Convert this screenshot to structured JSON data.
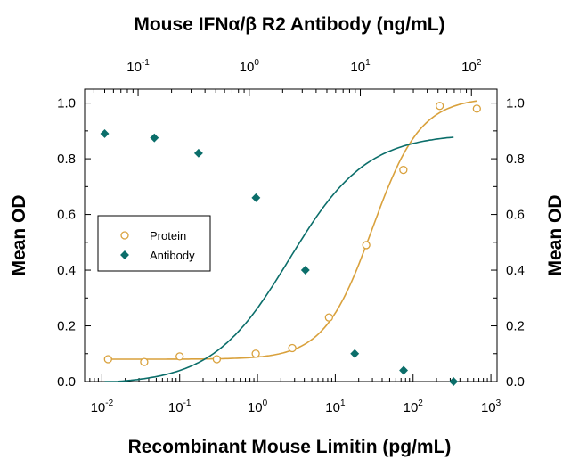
{
  "chart_data": {
    "type": "scatter",
    "title": "Mouse IFNα/β R2 Antibody (ng/mL)",
    "xlabel": "Recombinant Mouse Limitin (pg/mL)",
    "ylabel_left": "Mean OD",
    "ylabel_right": "Mean OD",
    "x_scale": "log",
    "xlim_bottom": [
      0.006,
      1200
    ],
    "xlim_top": [
      0.033,
      170
    ],
    "ylim": [
      0.0,
      1.05
    ],
    "x_ticks_bottom": [
      {
        "base": "10",
        "exp": "-2",
        "value": 0.01
      },
      {
        "base": "10",
        "exp": "-1",
        "value": 0.1
      },
      {
        "base": "10",
        "exp": "0",
        "value": 1
      },
      {
        "base": "10",
        "exp": "1",
        "value": 10
      },
      {
        "base": "10",
        "exp": "2",
        "value": 100
      },
      {
        "base": "10",
        "exp": "3",
        "value": 1000
      }
    ],
    "x_ticks_top": [
      {
        "base": "10",
        "exp": "-1",
        "value": 0.1
      },
      {
        "base": "10",
        "exp": "0",
        "value": 1
      },
      {
        "base": "10",
        "exp": "1",
        "value": 10
      },
      {
        "base": "10",
        "exp": "2",
        "value": 100
      }
    ],
    "y_ticks": [
      {
        "label": "0.0",
        "value": 0.0
      },
      {
        "label": "0.2",
        "value": 0.2
      },
      {
        "label": "0.4",
        "value": 0.4
      },
      {
        "label": "0.6",
        "value": 0.6
      },
      {
        "label": "0.8",
        "value": 0.8
      },
      {
        "label": "1.0",
        "value": 1.0
      }
    ],
    "legend": {
      "position": "center-left",
      "entries": [
        "Protein",
        "Antibody"
      ]
    },
    "series": [
      {
        "name": "Protein",
        "axis": "bottom",
        "marker": "open-circle",
        "color": "#D9A13C",
        "x": [
          0.012,
          0.035,
          0.1,
          0.3,
          0.95,
          2.8,
          8.3,
          25,
          75,
          220,
          660
        ],
        "y": [
          0.08,
          0.07,
          0.09,
          0.08,
          0.1,
          0.12,
          0.23,
          0.49,
          0.76,
          0.99,
          0.98
        ],
        "fit": {
          "model": "4PL",
          "bottom": 0.08,
          "top": 1.02,
          "ec50": 30,
          "hill": 1.4
        }
      },
      {
        "name": "Antibody",
        "axis": "top",
        "marker": "filled-diamond",
        "color": "#0B6E6A",
        "x": [
          0.05,
          0.14,
          0.35,
          1.15,
          3.2,
          8.9,
          24.5,
          69
        ],
        "y": [
          0.89,
          0.875,
          0.82,
          0.66,
          0.4,
          0.1,
          0.04,
          0.0
        ],
        "fit": {
          "model": "4PL",
          "bottom": -0.01,
          "top": 0.89,
          "ec50": 2.3,
          "hill": 1.25
        }
      }
    ]
  }
}
